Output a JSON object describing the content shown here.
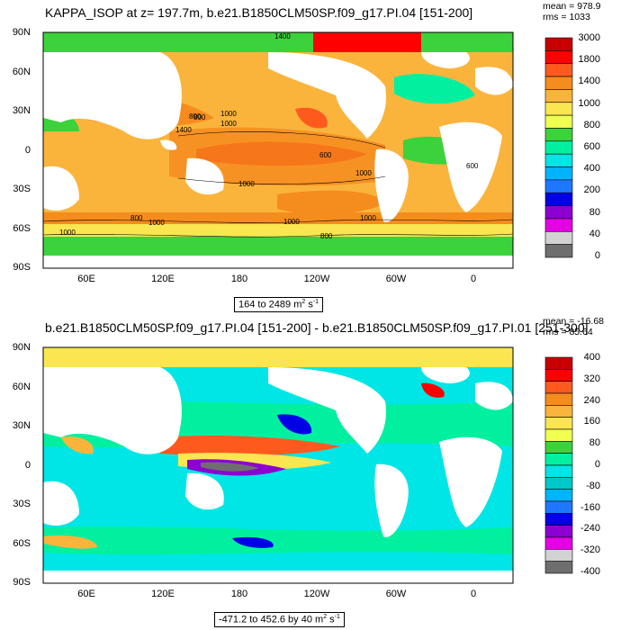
{
  "panel1": {
    "title": "KAPPA_ISOP at z= 197.7m, b.e21.B1850CLM50SP.f09_g17.PI.04 [151-200]",
    "stats": {
      "mean": "mean = 978.9",
      "rms": "rms = 1033"
    },
    "range_text": "164 to 2489",
    "units_base": "m",
    "units_exp1": "2",
    "units_mid": " s",
    "units_exp2": "-1",
    "colorbar_labels": [
      "3000",
      "1800",
      "1400",
      "1000",
      "800",
      "600",
      "400",
      "200",
      "80",
      "40",
      "0"
    ],
    "colorbar_colors": [
      "#c80000",
      "#ff0000",
      "#ff5a1e",
      "#f58c1e",
      "#fab43c",
      "#fae650",
      "#f0ff50",
      "#3cd23c",
      "#00f0a0",
      "#00e6e6",
      "#00b4ff",
      "#1e78ff",
      "#0000e6",
      "#8c00d2",
      "#e600e6",
      "#d2d2d2",
      "#6e6e6e"
    ],
    "contour_labels": [
      "1400",
      "1000",
      "800",
      "1400",
      "600",
      "1000",
      "800",
      "600",
      "1000",
      "1000",
      "1000",
      "1000",
      "1000",
      "1000",
      "800",
      "800"
    ]
  },
  "panel2": {
    "title": "b.e21.B1850CLM50SP.f09_g17.PI.04 [151-200] - b.e21.B1850CLM50SP.f09_g17.PI.01 [251-300]",
    "stats": {
      "mean": "mean = -16.68",
      "rms": "rms = 85.64"
    },
    "range_text": "-471.2 to 452.6 by 40",
    "units_base": "m",
    "units_exp1": "2",
    "units_mid": " s",
    "units_exp2": "-1",
    "colorbar_labels": [
      "400",
      "320",
      "240",
      "160",
      "80",
      "0",
      "-80",
      "-160",
      "-240",
      "-320",
      "-400"
    ],
    "colorbar_colors": [
      "#c80000",
      "#ff0000",
      "#ff5a1e",
      "#f58c1e",
      "#fab43c",
      "#fae650",
      "#f0ff50",
      "#3cd23c",
      "#00f0a0",
      "#00e6e6",
      "#00c8c8",
      "#00b4ff",
      "#1e78ff",
      "#0000e6",
      "#8c00d2",
      "#e600e6",
      "#d2d2d2",
      "#6e6e6e"
    ]
  },
  "axes": {
    "lat_labels": [
      "90N",
      "60N",
      "30N",
      "0",
      "30S",
      "60S",
      "90S"
    ],
    "lon_labels": [
      "60E",
      "120E",
      "180",
      "120W",
      "60W",
      "0"
    ]
  }
}
